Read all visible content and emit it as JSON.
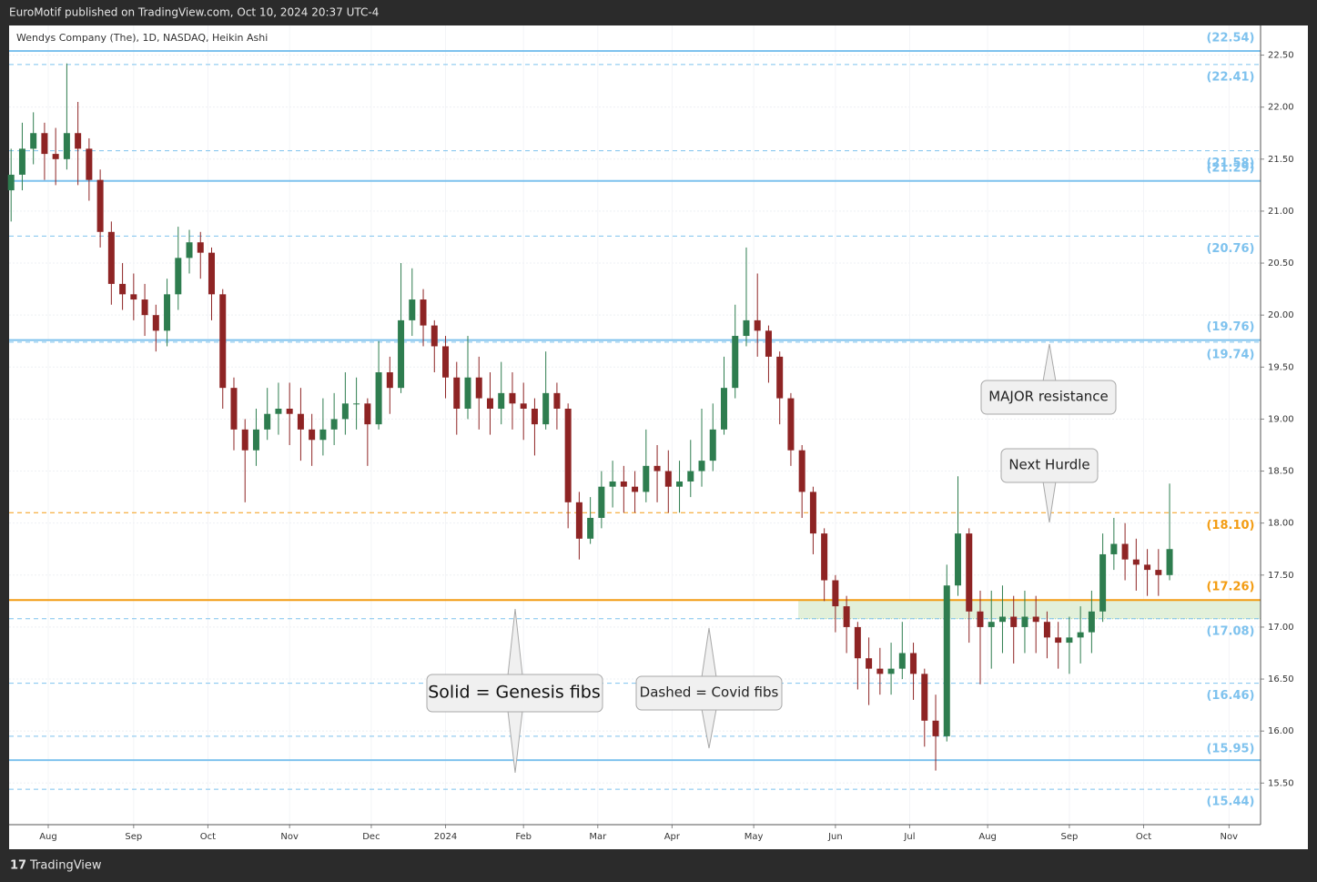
{
  "header": {
    "publisher": "EuroMotif published on TradingView.com, Oct 10, 2024 20:37 UTC-4"
  },
  "footer": {
    "brand": "TradingView"
  },
  "chart_data": {
    "type": "candlestick",
    "title": "Wendys Company (The), 1D, NASDAQ, Heikin Ashi",
    "up_color": "#2e7d4f",
    "down_color": "#8e2424",
    "grid": true,
    "xlim": [
      -10.54,
      326.5
    ],
    "xticks": [
      {
        "value": 0,
        "label": "Aug"
      },
      {
        "value": 23,
        "label": "Sep"
      },
      {
        "value": 43,
        "label": "Oct"
      },
      {
        "value": 65,
        "label": "Nov"
      },
      {
        "value": 87,
        "label": "Dec"
      },
      {
        "value": 107,
        "label": "2024"
      },
      {
        "value": 128,
        "label": "Feb"
      },
      {
        "value": 148,
        "label": "Mar"
      },
      {
        "value": 168,
        "label": "Apr"
      },
      {
        "value": 190,
        "label": "May"
      },
      {
        "value": 212,
        "label": "Jun"
      },
      {
        "value": 232,
        "label": "Jul"
      },
      {
        "value": 253,
        "label": "Aug"
      },
      {
        "value": 275,
        "label": "Sep"
      },
      {
        "value": 295,
        "label": "Oct"
      },
      {
        "value": 318,
        "label": "Nov"
      }
    ],
    "ylim": [
      15.1,
      22.785
    ],
    "yticks": [
      {
        "value": 15.5,
        "label": "15.50"
      },
      {
        "value": 16,
        "label": "16.00"
      },
      {
        "value": 16.5,
        "label": "16.50"
      },
      {
        "value": 17,
        "label": "17.00"
      },
      {
        "value": 17.5,
        "label": "17.50"
      },
      {
        "value": 18,
        "label": "18.00"
      },
      {
        "value": 18.5,
        "label": "18.50"
      },
      {
        "value": 19,
        "label": "19.00"
      },
      {
        "value": 19.5,
        "label": "19.50"
      },
      {
        "value": 20,
        "label": "20.00"
      },
      {
        "value": 20.5,
        "label": "20.50"
      },
      {
        "value": 21,
        "label": "21.00"
      },
      {
        "value": 21.5,
        "label": "21.50"
      },
      {
        "value": 22,
        "label": "22.00"
      },
      {
        "value": 22.5,
        "label": "22.50"
      }
    ],
    "x": [
      -10,
      -7,
      -4,
      -1,
      2,
      5,
      8,
      11,
      14,
      17,
      20,
      23,
      26,
      29,
      32,
      35,
      38,
      41,
      44,
      47,
      50,
      53,
      56,
      59,
      62,
      65,
      68,
      71,
      74,
      77,
      80,
      83,
      86,
      89,
      92,
      95,
      98,
      101,
      104,
      107,
      110,
      113,
      116,
      119,
      122,
      125,
      128,
      131,
      134,
      137,
      140,
      143,
      146,
      149,
      152,
      155,
      158,
      161,
      164,
      167,
      170,
      173,
      176,
      179,
      182,
      185,
      188,
      191,
      194,
      197,
      200,
      203,
      206,
      209,
      212,
      215,
      218,
      221,
      224,
      227,
      230,
      233,
      236,
      239,
      242,
      245,
      248,
      251,
      254,
      257,
      260,
      263,
      266,
      269,
      272,
      275,
      278,
      281,
      284,
      287,
      290,
      293,
      296,
      299,
      302
    ],
    "open": [
      21.2,
      21.35,
      21.6,
      21.75,
      21.55,
      21.5,
      21.75,
      21.6,
      21.3,
      20.8,
      20.3,
      20.2,
      20.15,
      20.0,
      19.85,
      20.2,
      20.55,
      20.7,
      20.6,
      20.2,
      19.3,
      18.9,
      18.7,
      18.9,
      19.05,
      19.1,
      19.05,
      18.9,
      18.8,
      18.9,
      19.0,
      19.15,
      19.15,
      18.95,
      19.45,
      19.3,
      19.95,
      20.15,
      19.9,
      19.7,
      19.4,
      19.1,
      19.4,
      19.2,
      19.1,
      19.25,
      19.15,
      19.1,
      18.95,
      19.25,
      19.1,
      18.2,
      17.85,
      18.05,
      18.35,
      18.4,
      18.35,
      18.3,
      18.55,
      18.5,
      18.35,
      18.4,
      18.5,
      18.6,
      18.9,
      19.3,
      19.8,
      19.95,
      19.85,
      19.6,
      19.2,
      18.7,
      18.3,
      17.9,
      17.45,
      17.2,
      17.0,
      16.7,
      16.6,
      16.55,
      16.6,
      16.75,
      16.55,
      16.1,
      15.95,
      17.4,
      17.9,
      17.15,
      17.0,
      17.05,
      17.1,
      17.0,
      17.1,
      17.05,
      16.9,
      16.85,
      16.9,
      16.95,
      17.15,
      17.7,
      17.8,
      17.65,
      17.6,
      17.55,
      17.5
    ],
    "high": [
      21.6,
      21.85,
      21.95,
      21.85,
      21.8,
      22.42,
      22.05,
      21.7,
      21.4,
      20.9,
      20.5,
      20.4,
      20.3,
      20.1,
      20.35,
      20.85,
      20.82,
      20.8,
      20.65,
      20.25,
      19.4,
      19.0,
      19.1,
      19.3,
      19.35,
      19.35,
      19.3,
      19.05,
      19.2,
      19.25,
      19.45,
      19.4,
      19.2,
      19.75,
      19.6,
      20.5,
      20.45,
      20.25,
      19.95,
      19.8,
      19.55,
      19.8,
      19.6,
      19.45,
      19.55,
      19.45,
      19.35,
      19.2,
      19.65,
      19.35,
      19.15,
      18.3,
      18.25,
      18.5,
      18.6,
      18.55,
      18.5,
      18.9,
      18.75,
      18.7,
      18.6,
      18.8,
      19.1,
      19.15,
      19.6,
      20.1,
      20.65,
      20.4,
      19.9,
      19.65,
      19.25,
      18.75,
      18.35,
      17.95,
      17.5,
      17.3,
      17.05,
      16.9,
      16.8,
      16.85,
      17.05,
      16.85,
      16.6,
      16.35,
      17.6,
      18.45,
      17.95,
      17.35,
      17.35,
      17.4,
      17.3,
      17.35,
      17.3,
      17.15,
      17.05,
      17.1,
      17.2,
      17.35,
      17.9,
      18.05,
      18.0,
      17.85,
      17.75,
      17.75,
      18.38
    ],
    "low": [
      20.9,
      21.2,
      21.45,
      21.3,
      21.25,
      21.4,
      21.25,
      21.1,
      20.65,
      20.1,
      20.05,
      19.95,
      19.8,
      19.65,
      19.7,
      20.05,
      20.4,
      20.35,
      19.95,
      19.1,
      18.7,
      18.2,
      18.55,
      18.8,
      18.85,
      18.75,
      18.6,
      18.55,
      18.65,
      18.75,
      18.85,
      18.9,
      18.55,
      18.9,
      19.05,
      19.25,
      19.8,
      19.7,
      19.45,
      19.2,
      18.85,
      19.0,
      18.9,
      18.85,
      18.95,
      18.9,
      18.8,
      18.65,
      18.9,
      18.9,
      17.95,
      17.65,
      17.8,
      17.95,
      18.15,
      18.1,
      18.1,
      18.2,
      18.2,
      18.1,
      18.1,
      18.25,
      18.35,
      18.5,
      18.85,
      19.2,
      19.7,
      19.6,
      19.35,
      18.95,
      18.55,
      18.05,
      17.7,
      17.25,
      16.95,
      16.75,
      16.4,
      16.25,
      16.35,
      16.35,
      16.5,
      16.3,
      15.85,
      15.62,
      15.9,
      17.3,
      16.85,
      16.45,
      16.6,
      16.75,
      16.65,
      16.75,
      16.75,
      16.7,
      16.6,
      16.55,
      16.65,
      16.75,
      17.05,
      17.55,
      17.45,
      17.35,
      17.3,
      17.3,
      17.45
    ],
    "close": [
      21.35,
      21.6,
      21.75,
      21.55,
      21.5,
      21.75,
      21.6,
      21.3,
      20.8,
      20.3,
      20.2,
      20.15,
      20.0,
      19.85,
      20.2,
      20.55,
      20.7,
      20.6,
      20.2,
      19.3,
      18.9,
      18.7,
      18.9,
      19.05,
      19.1,
      19.05,
      18.9,
      18.8,
      18.9,
      19.0,
      19.15,
      19.15,
      18.95,
      19.45,
      19.3,
      19.95,
      20.15,
      19.9,
      19.7,
      19.4,
      19.1,
      19.4,
      19.2,
      19.1,
      19.25,
      19.15,
      19.1,
      18.95,
      19.25,
      19.1,
      18.2,
      17.85,
      18.05,
      18.35,
      18.4,
      18.35,
      18.3,
      18.55,
      18.5,
      18.35,
      18.4,
      18.5,
      18.6,
      18.9,
      19.3,
      19.8,
      19.95,
      19.85,
      19.6,
      19.2,
      18.7,
      18.3,
      17.9,
      17.45,
      17.2,
      17.0,
      16.7,
      16.6,
      16.55,
      16.6,
      16.75,
      16.55,
      16.1,
      15.95,
      17.4,
      17.9,
      17.15,
      17.0,
      17.05,
      17.1,
      17.0,
      17.1,
      17.05,
      16.9,
      16.85,
      16.9,
      16.95,
      17.15,
      17.7,
      17.8,
      17.65,
      17.6,
      17.55,
      17.5,
      17.75
    ],
    "zone": {
      "from_x": 202,
      "low": 17.08,
      "high": 17.26,
      "color": "#e2f0da"
    },
    "levels": [
      {
        "value": 22.54,
        "label": "(22.54)",
        "style": "solid",
        "color": "#7ec2ee",
        "label_side": "above"
      },
      {
        "value": 22.41,
        "label": "(22.41)",
        "style": "dashed",
        "color": "#7ec2ee",
        "label_side": "below"
      },
      {
        "value": 21.58,
        "label": "(21.58)",
        "style": "dashed",
        "color": "#7ec2ee",
        "label_side": "below"
      },
      {
        "value": 21.29,
        "label": "(21.29)",
        "style": "solid",
        "color": "#7ec2ee",
        "label_side": "above"
      },
      {
        "value": 20.76,
        "label": "(20.76)",
        "style": "dashed",
        "color": "#7ec2ee",
        "label_side": "below"
      },
      {
        "value": 19.76,
        "label": "(19.76)",
        "style": "solid",
        "color": "#7ec2ee",
        "label_side": "above"
      },
      {
        "value": 19.74,
        "label": "(19.74)",
        "style": "dashed",
        "color": "#7ec2ee",
        "label_side": "below"
      },
      {
        "value": 18.1,
        "label": "(18.10)",
        "style": "dashed",
        "color": "#f39c12",
        "label_side": "below"
      },
      {
        "value": 17.26,
        "label": "(17.26)",
        "style": "solid",
        "color": "#f39c12",
        "label_side": "above"
      },
      {
        "value": 17.08,
        "label": "(17.08)",
        "style": "dashed",
        "color": "#7ec2ee",
        "label_side": "below"
      },
      {
        "value": 16.46,
        "label": "(16.46)",
        "style": "dashed",
        "color": "#7ec2ee",
        "label_side": "below"
      },
      {
        "value": 15.95,
        "label": "(15.95)",
        "style": "dashed",
        "color": "#7ec2ee",
        "label_side": "below"
      },
      {
        "value": 15.72,
        "style": "solid",
        "color": "#7ec2ee"
      },
      {
        "value": 15.44,
        "label": "(15.44)",
        "style": "dashed",
        "color": "#7ec2ee",
        "label_side": "below"
      }
    ],
    "annotations": [
      "MAJOR resistance",
      "Next Hurdle",
      "Solid = Genesis fibs",
      "Dashed = Covid fibs"
    ]
  }
}
